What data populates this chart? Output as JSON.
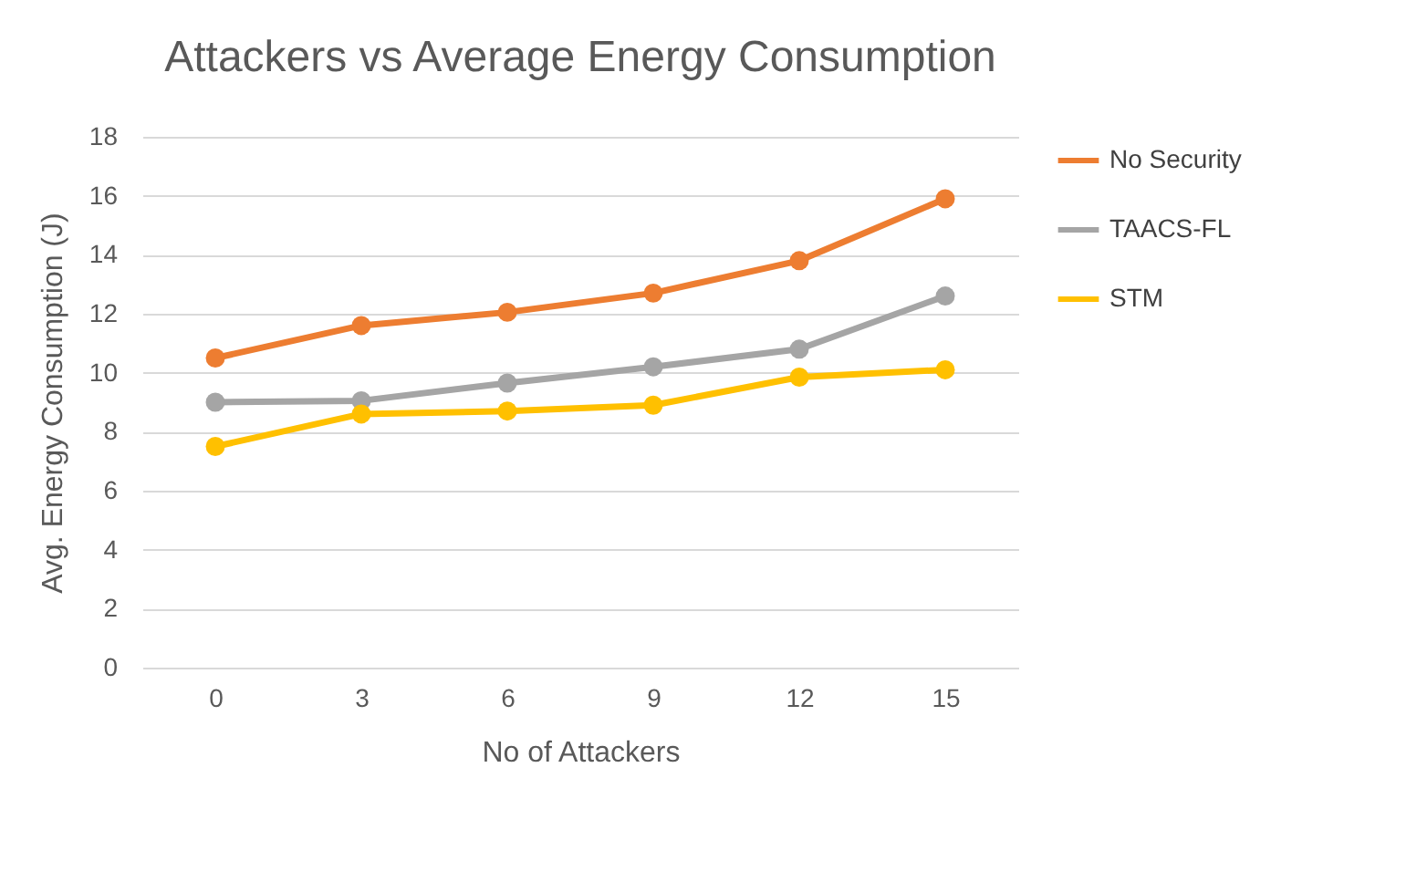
{
  "chart_data": {
    "type": "line",
    "title": "Attackers vs Average Energy Consumption",
    "xlabel": "No of Attackers",
    "ylabel": "Avg. Energy Consumption (J)",
    "categories": [
      "0",
      "3",
      "6",
      "9",
      "12",
      "15"
    ],
    "series": [
      {
        "name": "No Security",
        "color": "#ed7d31",
        "values": [
          10.5,
          11.6,
          12.05,
          12.7,
          13.8,
          15.9
        ]
      },
      {
        "name": "TAACS-FL",
        "color": "#a5a5a5",
        "values": [
          9.0,
          9.05,
          9.65,
          10.2,
          10.8,
          12.6
        ]
      },
      {
        "name": "STM",
        "color": "#ffc000",
        "values": [
          7.5,
          8.6,
          8.7,
          8.9,
          9.85,
          10.1
        ]
      }
    ],
    "ylim": [
      0,
      18
    ],
    "yticks": [
      0,
      2,
      4,
      6,
      8,
      10,
      12,
      14,
      16,
      18
    ],
    "grid": "y",
    "legend": "right",
    "marker": "circle",
    "line_style": "solid"
  }
}
